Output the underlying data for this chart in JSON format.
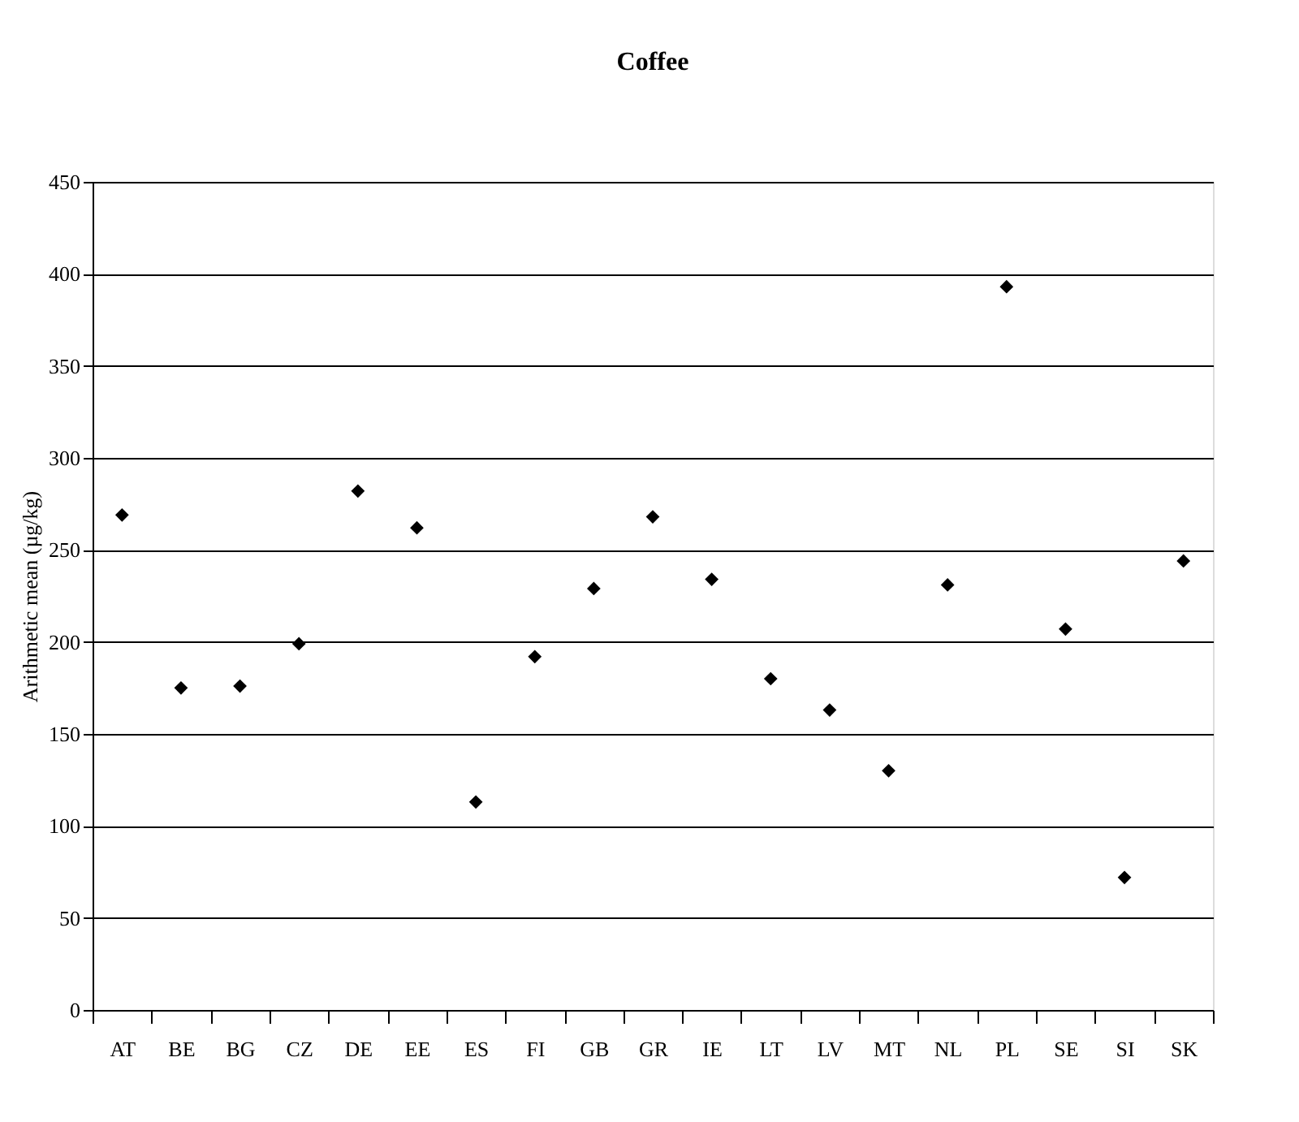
{
  "chart_data": {
    "type": "scatter",
    "title": "Coffee",
    "ylabel": "Arithmetic mean (µg/kg)",
    "categories": [
      "AT",
      "BE",
      "BG",
      "CZ",
      "DE",
      "EE",
      "ES",
      "FI",
      "GB",
      "GR",
      "IE",
      "LT",
      "LV",
      "MT",
      "NL",
      "PL",
      "SE",
      "SI",
      "SK"
    ],
    "series": [
      {
        "color": "#000000",
        "values": [
          269,
          175,
          176,
          199,
          282,
          262,
          113,
          192,
          229,
          268,
          234,
          180,
          163,
          130,
          231,
          393,
          207,
          72,
          244
        ]
      }
    ],
    "ylim": [
      0,
      450
    ],
    "yticks": [
      0,
      50,
      100,
      150,
      200,
      250,
      300,
      350,
      400,
      450
    ],
    "grid": "y",
    "marker": "diamond",
    "legend": false
  }
}
